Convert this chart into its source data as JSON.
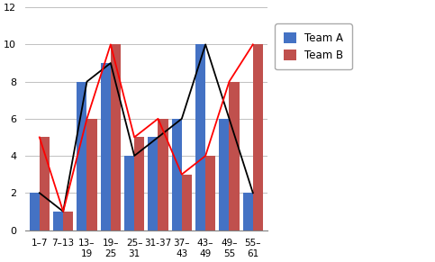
{
  "categories": [
    "1–7",
    "7–13",
    "13–\n19",
    "19–\n25",
    "25–\n31",
    "31-37",
    "37–\n43",
    "43–\n49",
    "49–\n55",
    "55–\n61"
  ],
  "team_a": [
    2,
    1,
    8,
    9,
    4,
    5,
    6,
    10,
    6,
    2
  ],
  "team_b": [
    5,
    1,
    6,
    10,
    5,
    6,
    3,
    4,
    8,
    10
  ],
  "color_a": "#4472C4",
  "color_b": "#C0504D",
  "line_color_a": "black",
  "line_color_b": "#FF0000",
  "ylim": [
    0,
    12
  ],
  "yticks": [
    0,
    2,
    4,
    6,
    8,
    10,
    12
  ],
  "legend_labels": [
    "Team A",
    "Team B"
  ],
  "bar_width": 0.42,
  "background_color": "#FFFFFF",
  "grid_color": "#C0C0C0",
  "figsize": [
    4.83,
    2.91
  ],
  "dpi": 100
}
